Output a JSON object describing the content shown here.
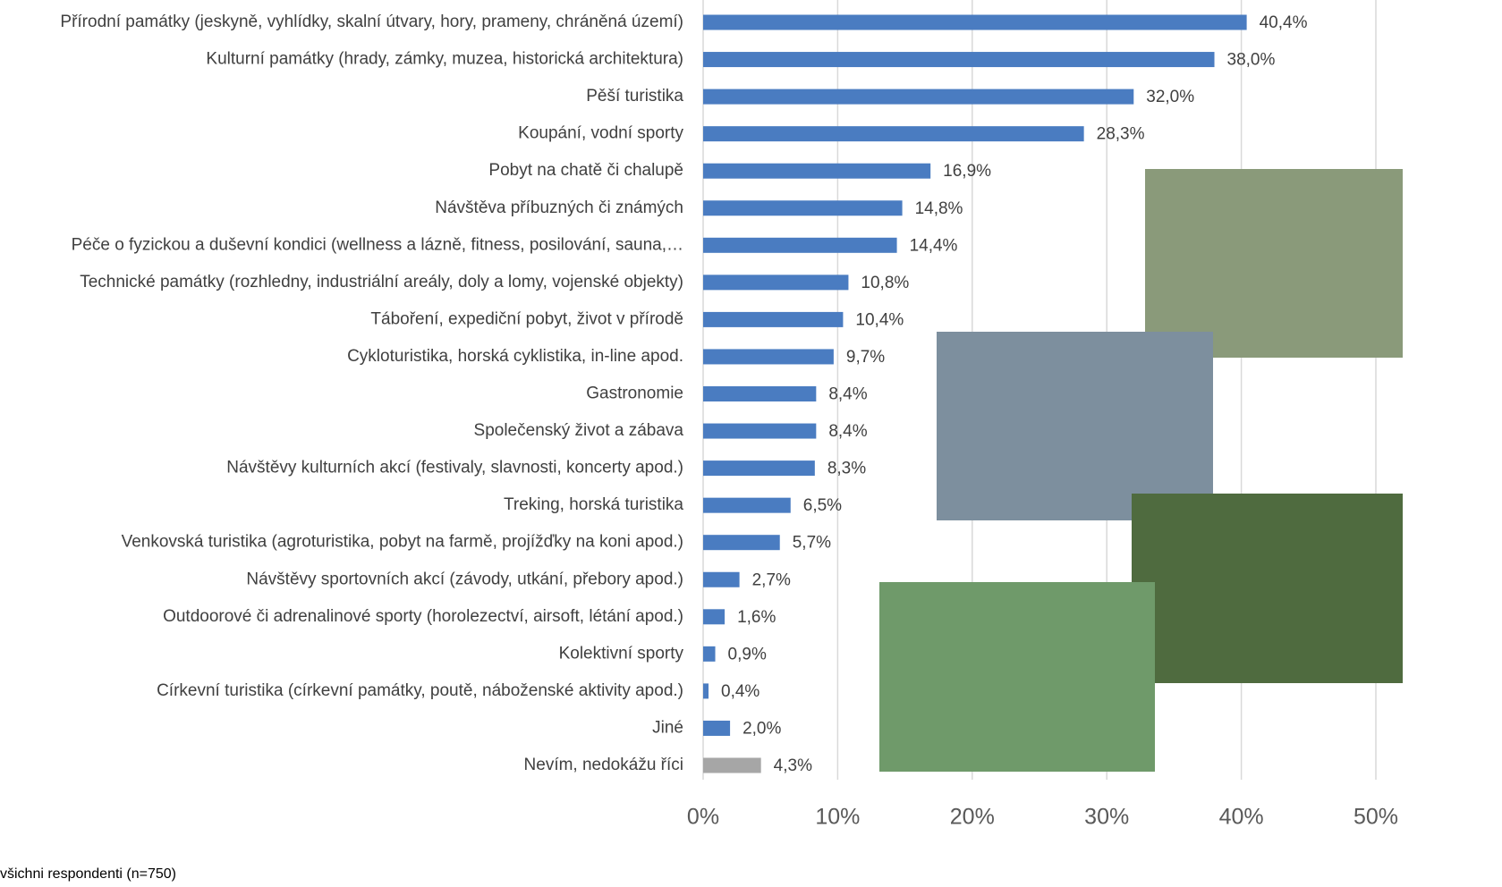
{
  "chart_data": {
    "type": "bar",
    "orientation": "horizontal",
    "categories": [
      "Přírodní památky (jeskyně, vyhlídky, skalní útvary, hory, prameny, chráněná území)",
      "Kulturní památky (hrady, zámky, muzea, historická architektura)",
      "Pěší turistika",
      "Koupání, vodní sporty",
      "Pobyt na chatě či chalupě",
      "Návštěva příbuzných či známých",
      "Péče o fyzickou a duševní kondici (wellness a lázně, fitness, posilování, sauna,…",
      "Technické památky (rozhledny, industriální areály, doly a lomy, vojenské objekty)",
      "Táboření, expediční pobyt, život v přírodě",
      "Cykloturistika, horská cyklistika, in-line apod.",
      "Gastronomie",
      "Společenský život a zábava",
      "Návštěvy kulturních akcí (festivaly, slavnosti, koncerty apod.)",
      "Treking, horská turistika",
      "Venkovská turistika (agroturistika, pobyt na farmě, projížďky na koni apod.)",
      "Návštěvy sportovních akcí (závody, utkání, přebory apod.)",
      "Outdoorové či adrenalinové sporty (horolezectví, airsoft, létání apod.)",
      "Kolektivní sporty",
      "Církevní turistika (církevní památky, poutě, náboženské aktivity apod.)",
      "Jiné",
      "Nevím, nedokážu říci"
    ],
    "values": [
      40.4,
      38.0,
      32.0,
      28.3,
      16.9,
      14.8,
      14.4,
      10.8,
      10.4,
      9.7,
      8.4,
      8.4,
      8.3,
      6.5,
      5.7,
      2.7,
      1.6,
      0.9,
      0.4,
      2.0,
      4.3
    ],
    "value_labels": [
      "40,4%",
      "38,0%",
      "32,0%",
      "28,3%",
      "16,9%",
      "14,8%",
      "14,4%",
      "10,8%",
      "10,4%",
      "9,7%",
      "8,4%",
      "8,4%",
      "8,3%",
      "6,5%",
      "5,7%",
      "2,7%",
      "1,6%",
      "0,9%",
      "0,4%",
      "2,0%",
      "4,3%"
    ],
    "colors": [
      "#4a7cc1",
      "#4a7cc1",
      "#4a7cc1",
      "#4a7cc1",
      "#4a7cc1",
      "#4a7cc1",
      "#4a7cc1",
      "#4a7cc1",
      "#4a7cc1",
      "#4a7cc1",
      "#4a7cc1",
      "#4a7cc1",
      "#4a7cc1",
      "#4a7cc1",
      "#4a7cc1",
      "#4a7cc1",
      "#4a7cc1",
      "#4a7cc1",
      "#4a7cc1",
      "#4a7cc1",
      "#a6a6a6"
    ],
    "xlim": [
      0,
      50
    ],
    "xticks": [
      {
        "value": 0,
        "label": "0%"
      },
      {
        "value": 10,
        "label": "10%"
      },
      {
        "value": 20,
        "label": "20%"
      },
      {
        "value": 30,
        "label": "30%"
      },
      {
        "value": 40,
        "label": "40%"
      },
      {
        "value": 50,
        "label": "50%"
      }
    ],
    "grid": true,
    "note": "všichni respondenti (n=750)"
  }
}
